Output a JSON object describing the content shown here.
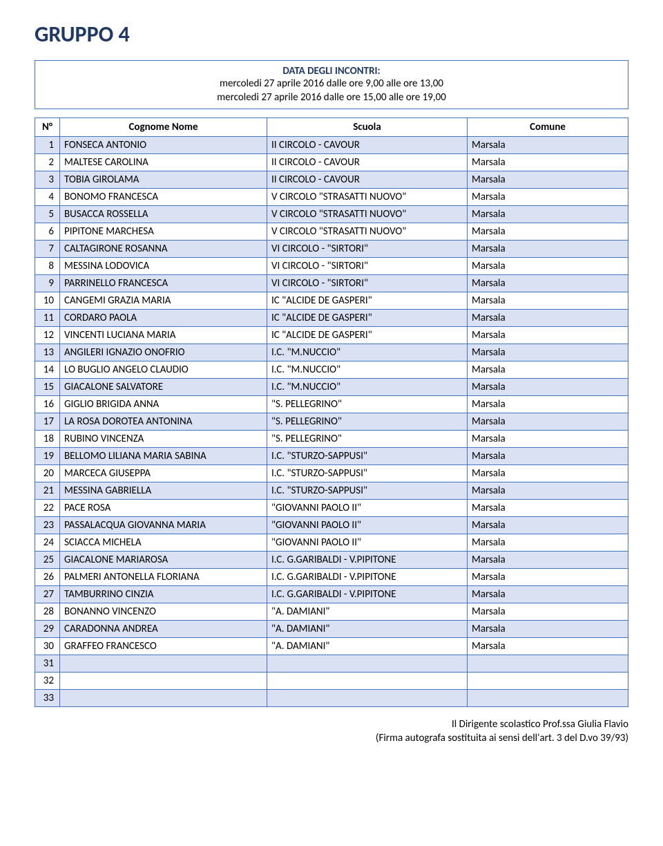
{
  "title": "GRUPPO 4",
  "meetings": {
    "heading": "DATA DEGLI INCONTRI:",
    "line1": "mercoledi 27 aprile 2016 dalle ore 9,00 alle ore 13,00",
    "line2": "mercoledi 27 aprile 2016 dalle ore 15,00 alle ore 19,00"
  },
  "headers": {
    "num": "N°",
    "name": "Cognome Nome",
    "school": "Scuola",
    "comune": "Comune"
  },
  "rows": [
    {
      "n": "1",
      "name": "FONSECA ANTONIO",
      "school": "II CIRCOLO - CAVOUR",
      "comune": "Marsala"
    },
    {
      "n": "2",
      "name": "MALTESE CAROLINA",
      "school": "II CIRCOLO - CAVOUR",
      "comune": "Marsala"
    },
    {
      "n": "3",
      "name": "TOBIA GIROLAMA",
      "school": "II CIRCOLO - CAVOUR",
      "comune": "Marsala"
    },
    {
      "n": "4",
      "name": "BONOMO FRANCESCA",
      "school": "V CIRCOLO \"STRASATTI NUOVO\"",
      "comune": "Marsala"
    },
    {
      "n": "5",
      "name": "BUSACCA ROSSELLA",
      "school": "V CIRCOLO \"STRASATTI NUOVO\"",
      "comune": "Marsala"
    },
    {
      "n": "6",
      "name": "PIPITONE MARCHESA",
      "school": "V CIRCOLO \"STRASATTI NUOVO\"",
      "comune": "Marsala"
    },
    {
      "n": "7",
      "name": "CALTAGIRONE ROSANNA",
      "school": "VI CIRCOLO - \"SIRTORI\"",
      "comune": "Marsala"
    },
    {
      "n": "8",
      "name": "MESSINA LODOVICA",
      "school": "VI CIRCOLO - \"SIRTORI\"",
      "comune": "Marsala"
    },
    {
      "n": "9",
      "name": "PARRINELLO FRANCESCA",
      "school": "VI CIRCOLO - \"SIRTORI\"",
      "comune": "Marsala"
    },
    {
      "n": "10",
      "name": "CANGEMI GRAZIA MARIA",
      "school": "IC \"ALCIDE DE GASPERI\"",
      "comune": "Marsala"
    },
    {
      "n": "11",
      "name": "CORDARO PAOLA",
      "school": "IC \"ALCIDE DE GASPERI\"",
      "comune": "Marsala"
    },
    {
      "n": "12",
      "name": "VINCENTI LUCIANA MARIA",
      "school": "IC \"ALCIDE DE GASPERI\"",
      "comune": "Marsala"
    },
    {
      "n": "13",
      "name": "ANGILERI IGNAZIO ONOFRIO",
      "school": "I.C. \"M.NUCCIO\"",
      "comune": "Marsala"
    },
    {
      "n": "14",
      "name": "LO BUGLIO ANGELO CLAUDIO",
      "school": "I.C. \"M.NUCCIO\"",
      "comune": "Marsala"
    },
    {
      "n": "15",
      "name": "GIACALONE SALVATORE",
      "school": "I.C. \"M.NUCCIO\"",
      "comune": "Marsala"
    },
    {
      "n": "16",
      "name": "GIGLIO BRIGIDA ANNA",
      "school": "\"S. PELLEGRINO\"",
      "comune": "Marsala"
    },
    {
      "n": "17",
      "name": "LA ROSA DOROTEA  ANTONINA",
      "school": "\"S. PELLEGRINO\"",
      "comune": "Marsala"
    },
    {
      "n": "18",
      "name": "RUBINO VINCENZA",
      "school": "\"S. PELLEGRINO\"",
      "comune": "Marsala"
    },
    {
      "n": "19",
      "name": "BELLOMO LILIANA MARIA SABINA",
      "school": "I.C. \"STURZO-SAPPUSI\"",
      "comune": "Marsala"
    },
    {
      "n": "20",
      "name": "MARCECA GIUSEPPA",
      "school": "I.C. \"STURZO-SAPPUSI\"",
      "comune": "Marsala"
    },
    {
      "n": "21",
      "name": "MESSINA GABRIELLA",
      "school": "I.C. \"STURZO-SAPPUSI\"",
      "comune": "Marsala"
    },
    {
      "n": "22",
      "name": "PACE ROSA",
      "school": "\"GIOVANNI PAOLO II\"",
      "comune": "Marsala"
    },
    {
      "n": "23",
      "name": "PASSALACQUA GIOVANNA MARIA",
      "school": "\"GIOVANNI PAOLO II\"",
      "comune": "Marsala"
    },
    {
      "n": "24",
      "name": "SCIACCA MICHELA",
      "school": "\"GIOVANNI PAOLO II\"",
      "comune": "Marsala"
    },
    {
      "n": "25",
      "name": "GIACALONE MARIAROSA",
      "school": "I.C. G.GARIBALDI - V.PIPITONE",
      "comune": "Marsala"
    },
    {
      "n": "26",
      "name": "PALMERI ANTONELLA FLORIANA",
      "school": "I.C. G.GARIBALDI - V.PIPITONE",
      "comune": "Marsala"
    },
    {
      "n": "27",
      "name": "TAMBURRINO CINZIA",
      "school": "I.C. G.GARIBALDI - V.PIPITONE",
      "comune": "Marsala"
    },
    {
      "n": "28",
      "name": "BONANNO VINCENZO",
      "school": "\"A. DAMIANI\"",
      "comune": "Marsala"
    },
    {
      "n": "29",
      "name": "CARADONNA ANDREA",
      "school": "\"A. DAMIANI\"",
      "comune": "Marsala"
    },
    {
      "n": "30",
      "name": "GRAFFEO FRANCESCO",
      "school": "\"A. DAMIANI\"",
      "comune": "Marsala"
    },
    {
      "n": "31",
      "name": "",
      "school": "",
      "comune": ""
    },
    {
      "n": "32",
      "name": "",
      "school": "",
      "comune": ""
    },
    {
      "n": "33",
      "name": "",
      "school": "",
      "comune": ""
    }
  ],
  "footer": {
    "line1": "Il Dirigente scolastico Prof.ssa Giulia Flavio",
    "line2": "(Firma autografa sostituita ai sensi dell'art. 3 del D.vo 39/93)"
  }
}
